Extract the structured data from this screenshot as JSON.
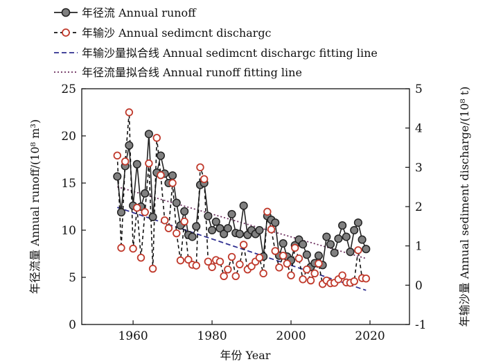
{
  "chart_data": {
    "type": "line",
    "xlabel": "年份 Year",
    "ylabel_left": "年径流量 Annual runoff/(10⁸ m³)",
    "ylabel_right": "年输沙量 Annual sediment discharge/(10⁸ t)",
    "xlim": [
      1947,
      2030
    ],
    "ylim_left": [
      0,
      25
    ],
    "ylim_right": [
      -1,
      5
    ],
    "x_ticks": [
      "1960",
      "1980",
      "2000",
      "2020"
    ],
    "y_ticks_left": [
      "0",
      "5",
      "10",
      "15",
      "20",
      "25"
    ],
    "y_ticks_right": [
      "-1",
      "0",
      "1",
      "2",
      "3",
      "4",
      "5"
    ],
    "legend": [
      {
        "key": "runoff",
        "label": "年径流 Annual runoff"
      },
      {
        "key": "sediment",
        "label": "年输沙 Annual sedimcnt dischargc"
      },
      {
        "key": "sediment_fit",
        "label": "年输沙量拟合线 Annual sedimcnt dischargc fitting line"
      },
      {
        "key": "runoff_fit",
        "label": "年径流量拟合线 Annual runoff fitting line"
      }
    ],
    "series": [
      {
        "name": "年径流 Annual runoff",
        "axis": "left",
        "color": "#222222",
        "marker_fill": "#808080",
        "x": [
          1956,
          1957,
          1958,
          1959,
          1960,
          1961,
          1962,
          1963,
          1964,
          1965,
          1966,
          1967,
          1968,
          1969,
          1970,
          1971,
          1972,
          1973,
          1974,
          1975,
          1976,
          1977,
          1978,
          1979,
          1980,
          1981,
          1982,
          1983,
          1984,
          1985,
          1986,
          1987,
          1988,
          1989,
          1990,
          1991,
          1992,
          1993,
          1994,
          1995,
          1996,
          1997,
          1998,
          1999,
          2000,
          2001,
          2002,
          2003,
          2004,
          2005,
          2006,
          2007,
          2008,
          2009,
          2010,
          2011,
          2012,
          2013,
          2014,
          2015,
          2016,
          2017,
          2018,
          2019
        ],
        "y": [
          15.7,
          11.9,
          16.8,
          19.0,
          12.6,
          17.0,
          12.5,
          13.9,
          20.2,
          11.4,
          16.1,
          17.9,
          16.0,
          15.0,
          15.8,
          12.9,
          10.5,
          12.0,
          9.5,
          9.3,
          10.4,
          14.8,
          15.0,
          11.5,
          10.0,
          10.9,
          10.2,
          9.6,
          10.2,
          11.7,
          9.7,
          9.6,
          12.6,
          9.5,
          10.0,
          9.6,
          10.0,
          7.2,
          11.5,
          11.1,
          10.8,
          7.3,
          8.6,
          7.2,
          6.8,
          8.4,
          9.0,
          8.5,
          7.4,
          6.1,
          6.5,
          7.3,
          6.3,
          9.3,
          8.5,
          7.6,
          9.1,
          10.5,
          9.3,
          7.7,
          10.0,
          10.8,
          9.0,
          8.0
        ]
      },
      {
        "name": "年输沙 Annual sedimcnt dischargc",
        "axis": "right",
        "color": "#111111",
        "marker_stroke": "#c0392b",
        "x": [
          1956,
          1957,
          1958,
          1959,
          1960,
          1961,
          1962,
          1963,
          1964,
          1965,
          1966,
          1967,
          1968,
          1969,
          1970,
          1971,
          1972,
          1973,
          1974,
          1975,
          1976,
          1977,
          1978,
          1979,
          1980,
          1981,
          1982,
          1983,
          1984,
          1985,
          1986,
          1987,
          1988,
          1989,
          1990,
          1991,
          1992,
          1993,
          1994,
          1995,
          1996,
          1997,
          1998,
          1999,
          2000,
          2001,
          2002,
          2003,
          2004,
          2005,
          2006,
          2007,
          2008,
          2009,
          2010,
          2011,
          2012,
          2013,
          2014,
          2015,
          2016,
          2017,
          2018,
          2019
        ],
        "y": [
          3.3,
          0.95,
          3.15,
          4.4,
          0.93,
          1.97,
          0.7,
          1.86,
          3.1,
          0.42,
          3.75,
          2.8,
          1.65,
          1.45,
          2.6,
          1.32,
          0.63,
          1.62,
          0.65,
          0.52,
          0.5,
          3.0,
          2.7,
          0.6,
          0.46,
          0.64,
          0.6,
          0.23,
          0.4,
          0.72,
          0.23,
          0.53,
          1.03,
          0.4,
          0.48,
          0.6,
          0.7,
          0.3,
          1.87,
          1.42,
          0.87,
          0.45,
          0.75,
          0.55,
          0.25,
          0.95,
          0.68,
          0.15,
          0.4,
          0.12,
          0.3,
          0.55,
          0.03,
          0.12,
          0.05,
          0.06,
          0.15,
          0.25,
          0.07,
          0.06,
          0.1,
          0.89,
          0.18,
          0.17
        ]
      },
      {
        "name": "年输沙量拟合线 Annual sedimcnt dischargc fitting line",
        "axis": "right",
        "color": "#2d2d8f",
        "style": "dashed",
        "x": [
          1956,
          2019
        ],
        "y": [
          1.98,
          -0.13
        ]
      },
      {
        "name": "年径流量拟合线 Annual runoff fitting line",
        "axis": "left",
        "color": "#6b2d5c",
        "style": "dotted",
        "x": [
          1956,
          2019
        ],
        "y": [
          14.6,
          7.0
        ]
      }
    ]
  }
}
